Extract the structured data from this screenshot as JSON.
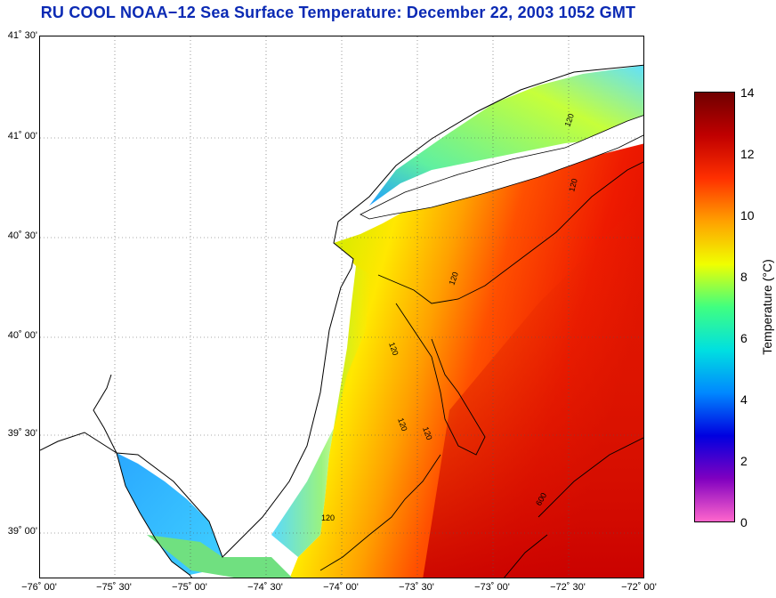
{
  "title": "RU COOL  NOAA−12  Sea Surface Temperature:  December 22, 2003 1052 GMT",
  "lat_labels": [
    "41˚ 30'",
    "41˚ 00'",
    "40˚ 30'",
    "40˚ 00'",
    "39˚ 30'",
    "39˚ 00'"
  ],
  "lon_labels": [
    "−76˚ 00'",
    "−75˚ 30'",
    "−75˚ 00'",
    "−74˚ 30'",
    "−74˚ 00'",
    "−73˚ 30'",
    "−73˚ 00'",
    "−72˚ 30'",
    "−72˚ 00'"
  ],
  "colorbar": {
    "label": "Temperature (°C)",
    "ticks": [
      "14",
      "12",
      "10",
      "8",
      "6",
      "4",
      "2",
      "0"
    ],
    "range": [
      0,
      14
    ],
    "colors": [
      "#ff66cc",
      "#8000c0",
      "#0000e0",
      "#0088ff",
      "#00e0e0",
      "#40ff80",
      "#f0ff00",
      "#ffa000",
      "#ff3000",
      "#c00000",
      "#700000"
    ]
  },
  "contour_labels": [
    "120",
    "120",
    "120",
    "120",
    "120",
    "120",
    "120",
    "600"
  ],
  "colors": {
    "land": "#ffffff",
    "title": "#0b2ab4",
    "coast": "#000000"
  }
}
